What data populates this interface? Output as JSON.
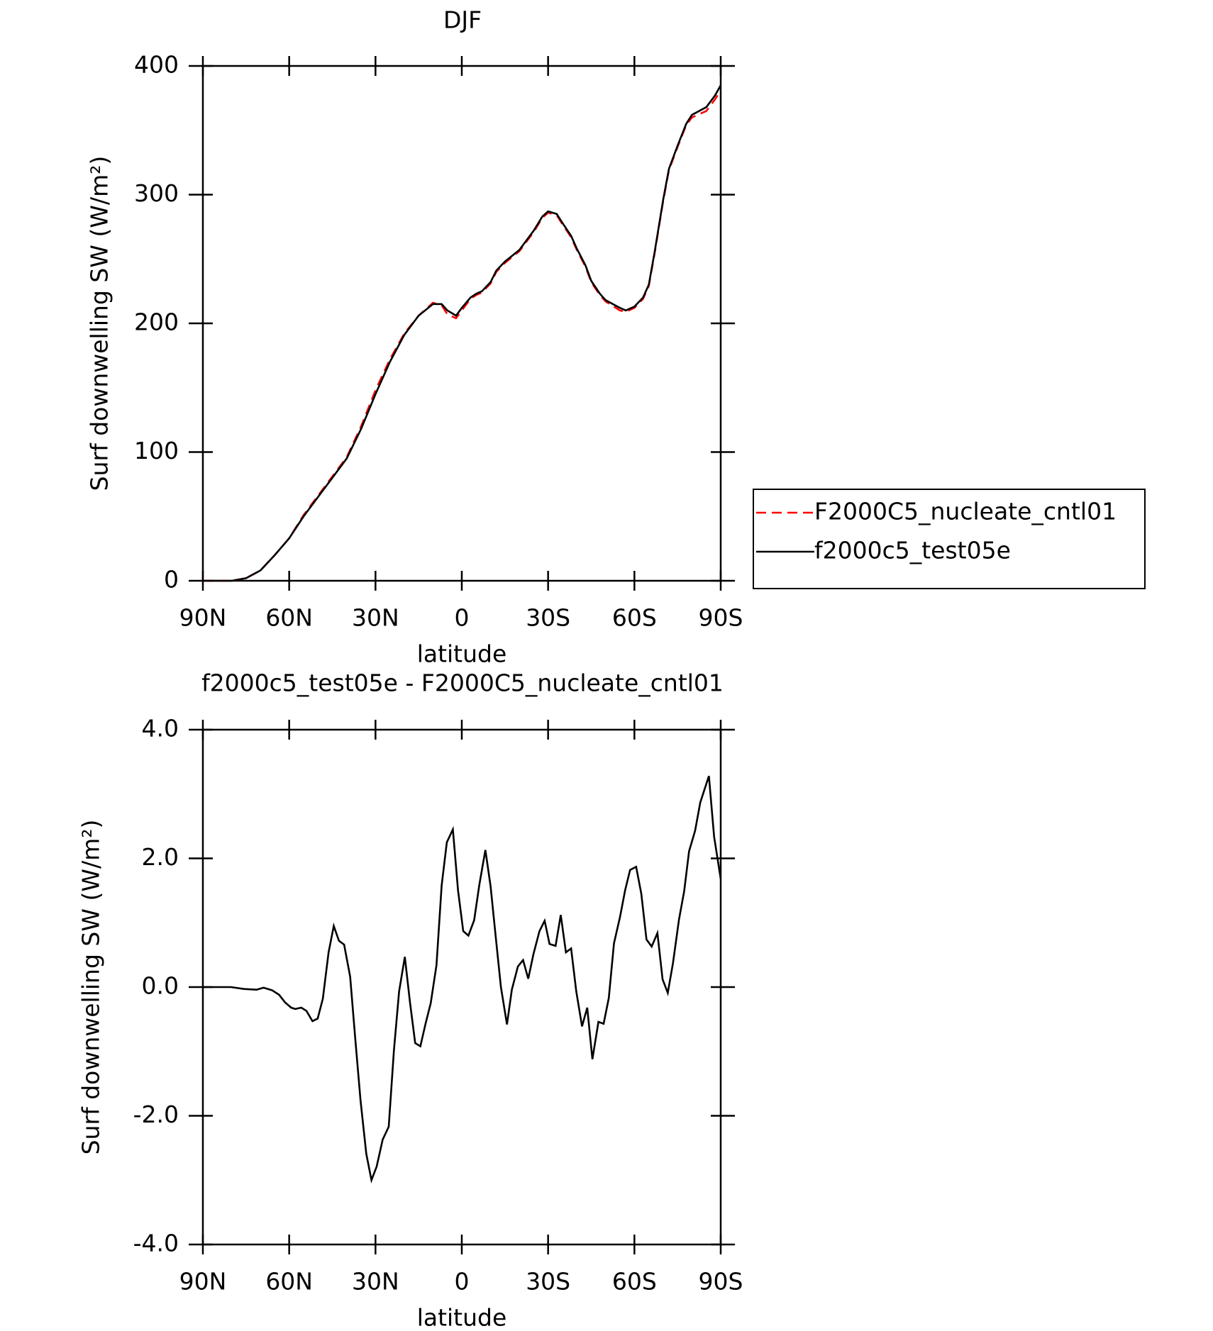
{
  "chart_data": [
    {
      "type": "line",
      "title": "DJF",
      "x_label": "latitude",
      "y_label": "Surf downwelling SW (W/m²)",
      "xlim": [
        90,
        -90
      ],
      "xticks": [
        {
          "value": 90,
          "label": "90N"
        },
        {
          "value": 60,
          "label": "60N"
        },
        {
          "value": 30,
          "label": "30N"
        },
        0,
        {
          "value": -30,
          "label": "30S"
        },
        {
          "value": -60,
          "label": "60S"
        },
        {
          "value": -90,
          "label": "90S"
        }
      ],
      "ylim": [
        0,
        400
      ],
      "yticks": [
        0,
        100,
        200,
        300,
        400
      ],
      "legend": "right",
      "x": [
        90,
        80,
        75,
        70,
        65,
        60,
        55,
        50,
        45,
        40,
        35,
        30,
        25,
        20,
        15,
        10,
        7,
        5,
        2,
        0,
        -3,
        -5,
        -7,
        -10,
        -12,
        -15,
        -20,
        -23,
        -25,
        -28,
        -30,
        -33,
        -35,
        -38,
        -40,
        -43,
        -45,
        -48,
        -50,
        -55,
        -57,
        -60,
        -63,
        -65,
        -67,
        -70,
        -72,
        -75,
        -78,
        -80,
        -85,
        -88,
        -90
      ],
      "series": [
        {
          "name": "F2000C5_nucleate_cntl01",
          "color": "#ff0000",
          "dashed": true,
          "values": [
            0,
            0,
            2,
            8,
            20,
            33,
            51,
            66,
            81,
            96,
            120,
            148,
            172,
            192,
            206,
            216,
            214,
            207,
            204,
            210,
            219,
            222,
            224,
            231,
            240,
            247,
            256,
            265,
            271,
            282,
            286,
            284,
            277,
            267,
            257,
            244,
            232,
            222,
            217,
            210,
            209,
            212,
            219,
            229,
            254,
            295,
            319,
            337,
            354,
            360,
            365,
            374,
            381
          ]
        },
        {
          "name": "f2000c5_test05e",
          "color": "#000000",
          "dashed": false,
          "values": [
            0,
            0,
            2,
            8,
            20,
            33,
            50,
            65,
            80,
            95,
            118,
            145,
            170,
            191,
            206,
            215,
            215,
            210,
            206,
            212,
            220,
            223,
            225,
            232,
            241,
            248,
            257,
            266,
            272,
            283,
            287,
            285,
            278,
            268,
            258,
            245,
            233,
            223,
            218,
            212,
            210,
            213,
            220,
            230,
            255,
            296,
            320,
            338,
            355,
            362,
            368,
            377,
            385
          ]
        }
      ]
    },
    {
      "type": "line",
      "title": "f2000c5_test05e - F2000C5_nucleate_cntl01",
      "x_label": "latitude",
      "y_label": "Surf downwelling SW (W/m²)",
      "xlim": [
        90,
        -90
      ],
      "xticks": [
        {
          "value": 90,
          "label": "90N"
        },
        {
          "value": 60,
          "label": "60N"
        },
        {
          "value": 30,
          "label": "30N"
        },
        0,
        {
          "value": -30,
          "label": "30S"
        },
        {
          "value": -60,
          "label": "60S"
        },
        {
          "value": -90,
          "label": "90S"
        }
      ],
      "ylim": [
        -4,
        4
      ],
      "yticks": [
        {
          "value": -4,
          "label": "-4.0"
        },
        {
          "value": -2,
          "label": "-2.0"
        },
        {
          "value": 0,
          "label": "0.0"
        },
        {
          "value": 2,
          "label": "2.0"
        },
        {
          "value": 4,
          "label": "4.0"
        }
      ],
      "color": "#000000",
      "x": [
        90,
        80.2,
        75.7,
        71.3,
        68.9,
        65.9,
        63.5,
        61.4,
        59.3,
        57.9,
        55.8,
        54.0,
        51.9,
        50.1,
        48.3,
        46.3,
        44.5,
        42.7,
        40.9,
        38.8,
        37.0,
        35.2,
        33.2,
        31.4,
        29.6,
        27.5,
        25.4,
        23.6,
        21.8,
        19.8,
        18.0,
        16.2,
        14.4,
        12.6,
        10.8,
        8.8,
        7.0,
        5.2,
        3.1,
        1.3,
        -0.5,
        -2.3,
        -4.3,
        -6.1,
        -8.2,
        -10.0,
        -11.8,
        -13.6,
        -15.7,
        -17.4,
        -19.5,
        -21.3,
        -23.1,
        -24.9,
        -27.0,
        -28.8,
        -30.5,
        -32.6,
        -34.4,
        -36.2,
        -38.0,
        -39.8,
        -41.8,
        -43.6,
        -45.4,
        -47.5,
        -49.3,
        -51.1,
        -52.9,
        -55.0,
        -56.8,
        -58.5,
        -60.6,
        -62.4,
        -64.2,
        -66.0,
        -68.0,
        -69.8,
        -71.6,
        -73.4,
        -75.5,
        -77.3,
        -79.0,
        -81.1,
        -82.9,
        -85.9,
        -87.7,
        -90
      ],
      "values": [
        0,
        0,
        -0.03,
        -0.04,
        -0.01,
        -0.05,
        -0.12,
        -0.24,
        -0.32,
        -0.34,
        -0.32,
        -0.37,
        -0.53,
        -0.49,
        -0.18,
        0.54,
        0.95,
        0.72,
        0.66,
        0.16,
        -0.82,
        -1.76,
        -2.59,
        -3.0,
        -2.79,
        -2.37,
        -2.17,
        -0.99,
        -0.07,
        0.47,
        -0.24,
        -0.87,
        -0.92,
        -0.57,
        -0.25,
        0.34,
        1.58,
        2.25,
        2.45,
        1.5,
        0.87,
        0.8,
        1.04,
        1.59,
        2.13,
        1.57,
        0.78,
        0,
        -0.58,
        -0.04,
        0.32,
        0.42,
        0.13,
        0.51,
        0.87,
        1.03,
        0.67,
        0.64,
        1.12,
        0.54,
        0.6,
        -0.07,
        -0.61,
        -0.32,
        -1.12,
        -0.54,
        -0.57,
        -0.17,
        0.68,
        1.09,
        1.51,
        1.82,
        1.87,
        1.45,
        0.74,
        0.63,
        0.84,
        0.12,
        -0.09,
        0.37,
        1.05,
        1.49,
        2.11,
        2.43,
        2.87,
        3.28,
        2.34,
        1.68
      ]
    }
  ]
}
